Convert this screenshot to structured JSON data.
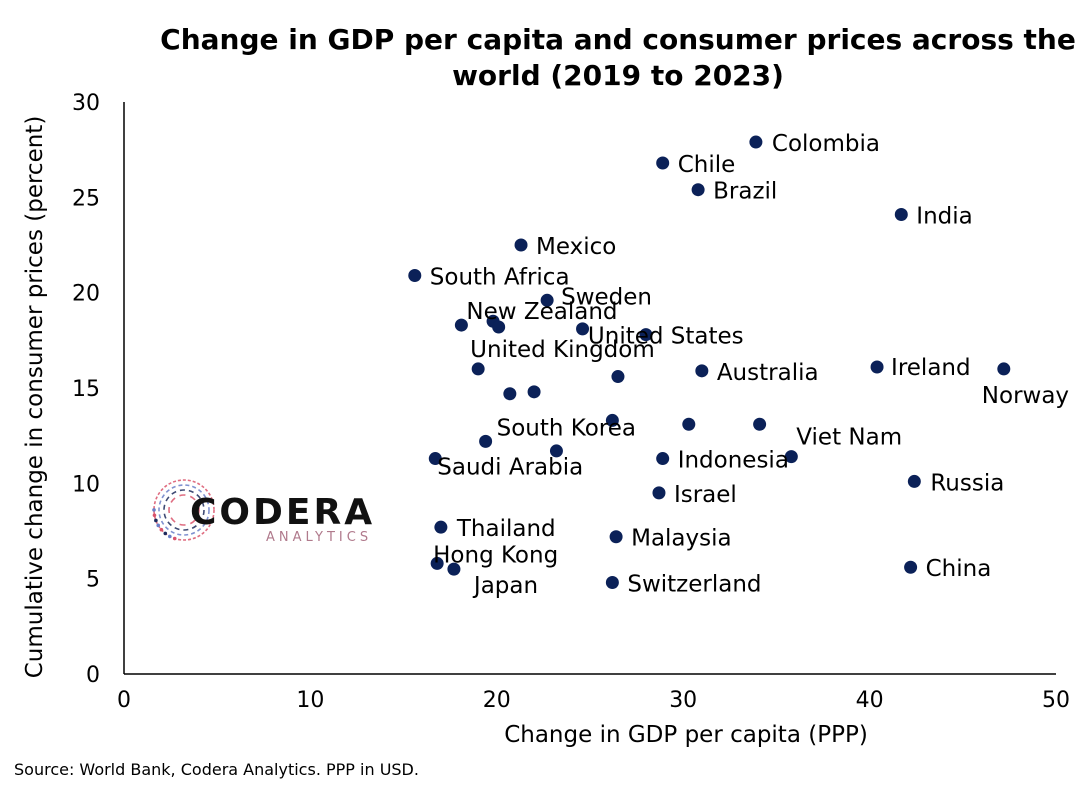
{
  "chart_data": {
    "type": "scatter",
    "title_lines": [
      "Change in GDP per capita and consumer prices across the",
      "world (2019 to 2023)"
    ],
    "xlabel": "Change in GDP per capita (PPP)",
    "ylabel": "Cumulative change in consumer prices (percent)",
    "xlim": [
      0,
      50
    ],
    "ylim": [
      0,
      30
    ],
    "xticks": [
      0,
      10,
      20,
      30,
      40,
      50
    ],
    "yticks": [
      0,
      5,
      10,
      15,
      20,
      25,
      30
    ],
    "grid": false,
    "marker_color": "#0b2158",
    "points": [
      {
        "x": 33.9,
        "y": 27.9,
        "label": "Colombia"
      },
      {
        "x": 28.9,
        "y": 26.8,
        "label": "Chile"
      },
      {
        "x": 30.8,
        "y": 25.4,
        "label": "Brazil"
      },
      {
        "x": 41.7,
        "y": 24.1,
        "label": "India"
      },
      {
        "x": 21.3,
        "y": 22.5,
        "label": "Mexico"
      },
      {
        "x": 15.6,
        "y": 20.9,
        "label": "South Africa"
      },
      {
        "x": 22.7,
        "y": 19.6,
        "label": "Sweden"
      },
      {
        "x": 18.1,
        "y": 18.3,
        "label": "New Zealand"
      },
      {
        "x": 19.8,
        "y": 18.5,
        "label": ""
      },
      {
        "x": 20.1,
        "y": 18.2,
        "label": ""
      },
      {
        "x": 24.6,
        "y": 18.1,
        "label": ""
      },
      {
        "x": 28.0,
        "y": 17.8,
        "label": "United States"
      },
      {
        "x": 19.0,
        "y": 16.0,
        "label": "United Kingdom"
      },
      {
        "x": 20.7,
        "y": 14.7,
        "label": ""
      },
      {
        "x": 22.0,
        "y": 14.8,
        "label": ""
      },
      {
        "x": 26.5,
        "y": 15.6,
        "label": ""
      },
      {
        "x": 31.0,
        "y": 15.9,
        "label": "Australia"
      },
      {
        "x": 40.4,
        "y": 16.1,
        "label": "Ireland"
      },
      {
        "x": 47.2,
        "y": 16.0,
        "label": "Norway"
      },
      {
        "x": 26.2,
        "y": 13.3,
        "label": ""
      },
      {
        "x": 30.3,
        "y": 13.1,
        "label": ""
      },
      {
        "x": 34.1,
        "y": 13.1,
        "label": ""
      },
      {
        "x": 19.4,
        "y": 12.2,
        "label": "South Korea"
      },
      {
        "x": 23.2,
        "y": 11.7,
        "label": ""
      },
      {
        "x": 16.7,
        "y": 11.3,
        "label": "Saudi Arabia"
      },
      {
        "x": 28.9,
        "y": 11.3,
        "label": "Indonesia"
      },
      {
        "x": 35.8,
        "y": 11.4,
        "label": "Viet Nam"
      },
      {
        "x": 28.7,
        "y": 9.5,
        "label": "Israel"
      },
      {
        "x": 42.4,
        "y": 10.1,
        "label": "Russia"
      },
      {
        "x": 17.0,
        "y": 7.7,
        "label": "Thailand"
      },
      {
        "x": 26.4,
        "y": 7.2,
        "label": "Malaysia"
      },
      {
        "x": 16.8,
        "y": 5.8,
        "label": "Hong Kong"
      },
      {
        "x": 17.7,
        "y": 5.5,
        "label": "Japan"
      },
      {
        "x": 26.2,
        "y": 4.8,
        "label": "Switzerland"
      },
      {
        "x": 42.2,
        "y": 5.6,
        "label": "China"
      }
    ]
  },
  "source": "Source: World Bank, Codera Analytics. PPP in USD.",
  "logo": {
    "word": "CODERA",
    "sub": "ANALYTICS",
    "colors": [
      "#d9536b",
      "#6a7fc8",
      "#1c2a5c"
    ]
  }
}
